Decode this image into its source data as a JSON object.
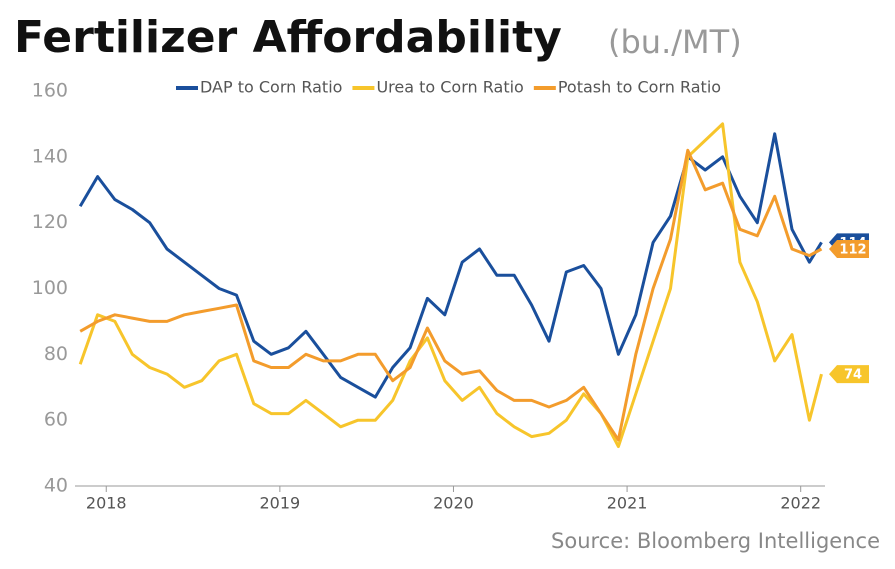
{
  "chart_data": {
    "type": "line",
    "title": "Fertilizer Affordability",
    "subtitle": "(bu./MT)",
    "source": "Source: Bloomberg Intelligence",
    "x": [
      2017.85,
      2017.95,
      2018.05,
      2018.15,
      2018.25,
      2018.35,
      2018.45,
      2018.55,
      2018.65,
      2018.75,
      2018.85,
      2018.95,
      2019.05,
      2019.15,
      2019.25,
      2019.35,
      2019.45,
      2019.55,
      2019.65,
      2019.75,
      2019.85,
      2019.95,
      2020.05,
      2020.15,
      2020.25,
      2020.35,
      2020.45,
      2020.55,
      2020.65,
      2020.75,
      2020.85,
      2020.95,
      2021.05,
      2021.15,
      2021.25,
      2021.35,
      2021.45,
      2021.55,
      2021.65,
      2021.75,
      2021.85,
      2021.95,
      2022.05,
      2022.12
    ],
    "series": [
      {
        "name": "DAP to Corn Ratio",
        "color": "#1a4f9c",
        "values": [
          125,
          134,
          127,
          124,
          120,
          112,
          108,
          104,
          100,
          98,
          84,
          80,
          82,
          87,
          80,
          73,
          70,
          67,
          76,
          82,
          97,
          92,
          108,
          112,
          104,
          104,
          95,
          84,
          105,
          107,
          100,
          80,
          92,
          114,
          122,
          140,
          136,
          140,
          128,
          120,
          147,
          118,
          108,
          114
        ]
      },
      {
        "name": "Urea to Corn Ratio",
        "color": "#f7c52b",
        "values": [
          77,
          92,
          90,
          80,
          76,
          74,
          70,
          72,
          78,
          80,
          65,
          62,
          62,
          66,
          62,
          58,
          60,
          60,
          66,
          78,
          85,
          72,
          66,
          70,
          62,
          58,
          55,
          56,
          60,
          68,
          62,
          52,
          68,
          84,
          100,
          140,
          145,
          150,
          108,
          96,
          78,
          86,
          60,
          74
        ]
      },
      {
        "name": "Potash to Corn Ratio",
        "color": "#f39c2c",
        "values": [
          87,
          90,
          92,
          91,
          90,
          90,
          92,
          93,
          94,
          95,
          78,
          76,
          76,
          80,
          78,
          78,
          80,
          80,
          72,
          76,
          88,
          78,
          74,
          75,
          69,
          66,
          66,
          64,
          66,
          70,
          62,
          54,
          80,
          100,
          115,
          142,
          130,
          132,
          118,
          116,
          128,
          112,
          110,
          112
        ]
      }
    ],
    "xlim": [
      2017.82,
      2022.14
    ],
    "xticks": [
      2018,
      2019,
      2020,
      2021,
      2022
    ],
    "ylim": [
      40,
      160
    ],
    "yticks": [
      40,
      60,
      80,
      100,
      120,
      140,
      160
    ],
    "grid": false
  }
}
